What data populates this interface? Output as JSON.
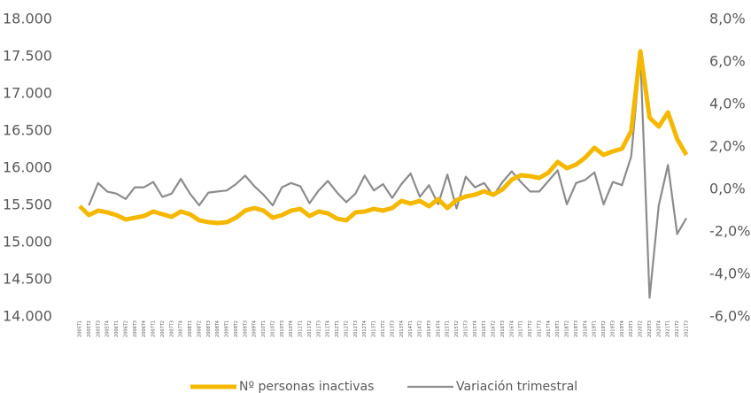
{
  "chart_data": {
    "type": "line",
    "categories": [
      "2005T1",
      "2005T2",
      "2005T3",
      "2005T4",
      "2006T1",
      "2006T2",
      "2006T3",
      "2006T4",
      "2007T1",
      "2007T2",
      "2007T3",
      "2007T4",
      "2008T1",
      "2008T2",
      "2008T3",
      "2008T4",
      "2009T1",
      "2009T2",
      "2009T3",
      "2009T4",
      "2010T1",
      "2010T2",
      "2010T3",
      "2010T4",
      "2011T1",
      "2011T2",
      "2011T3",
      "2011T4",
      "2012T1",
      "2012T2",
      "2012T3",
      "2012T4",
      "2013T1",
      "2013T2",
      "2013T3",
      "2013T4",
      "2014T1",
      "2014T2",
      "2014T3",
      "2014T4",
      "2015T1",
      "2015T2",
      "2015T3",
      "2015T4",
      "2016T1",
      "2016T2",
      "2016T3",
      "2016T4",
      "2017T1",
      "2017T2",
      "2017T3",
      "2017T4",
      "2018T1",
      "2018T2",
      "2018T3",
      "2018T4",
      "2019T1",
      "2019T2",
      "2019T3",
      "2019T4",
      "2020T1",
      "2020T2",
      "2020T3",
      "2020T4",
      "2021T1",
      "2021T2",
      "2021T3"
    ],
    "series": [
      {
        "name": "Nº personas inactivas",
        "color": "#f5b800",
        "values": [
          15488,
          15369,
          15429,
          15405,
          15369,
          15310,
          15333,
          15357,
          15417,
          15381,
          15345,
          15417,
          15381,
          15298,
          15274,
          15262,
          15274,
          15333,
          15429,
          15464,
          15429,
          15333,
          15369,
          15429,
          15452,
          15357,
          15417,
          15393,
          15321,
          15298,
          15405,
          15417,
          15452,
          15429,
          15464,
          15560,
          15524,
          15560,
          15488,
          15583,
          15464,
          15571,
          15619,
          15643,
          15690,
          15643,
          15714,
          15845,
          15905,
          15893,
          15869,
          15940,
          16083,
          16000,
          16048,
          16143,
          16274,
          16179,
          16226,
          16262,
          16500,
          17571,
          16679,
          16560,
          16750,
          16393,
          16179
        ]
      },
      {
        "name": "Variación trimestral",
        "color": "#8c8c8c",
        "axis": "y2",
        "values": [
          null,
          -0.75,
          0.3,
          -0.1,
          -0.2,
          -0.45,
          0.1,
          0.1,
          0.35,
          -0.35,
          -0.2,
          0.5,
          -0.2,
          -0.75,
          -0.15,
          -0.1,
          -0.05,
          0.25,
          0.65,
          0.15,
          -0.25,
          -0.75,
          0.1,
          0.3,
          0.15,
          -0.65,
          -0.05,
          0.4,
          -0.15,
          -0.6,
          -0.2,
          0.65,
          -0.05,
          0.25,
          -0.4,
          0.25,
          0.75,
          -0.35,
          0.2,
          -0.7,
          0.7,
          -0.9,
          0.6,
          0.1,
          0.3,
          -0.3,
          0.35,
          0.85,
          0.35,
          -0.1,
          -0.1,
          0.4,
          0.9,
          -0.7,
          0.3,
          0.45,
          0.8,
          -0.7,
          0.35,
          0.2,
          1.55,
          6.3,
          -5.1,
          -0.75,
          1.15,
          -2.1,
          -1.35
        ]
      }
    ],
    "ylim": [
      14000,
      18000
    ],
    "yticks": [
      {
        "value": 14000,
        "label": "14.000"
      },
      {
        "value": 14500,
        "label": "14.500"
      },
      {
        "value": 15000,
        "label": "15.000"
      },
      {
        "value": 15500,
        "label": "15.500"
      },
      {
        "value": 16000,
        "label": "16.000"
      },
      {
        "value": 16500,
        "label": "16.500"
      },
      {
        "value": 17000,
        "label": "17.000"
      },
      {
        "value": 17500,
        "label": "17.500"
      },
      {
        "value": 18000,
        "label": "18.000"
      }
    ],
    "y2lim": [
      -6,
      8
    ],
    "y2ticks": [
      {
        "value": -6,
        "label": "-6,0%"
      },
      {
        "value": -4,
        "label": "-4,0%"
      },
      {
        "value": -2,
        "label": "-2,0%"
      },
      {
        "value": 0,
        "label": "0,0%"
      },
      {
        "value": 2,
        "label": "2,0%"
      },
      {
        "value": 4,
        "label": "4,0%"
      },
      {
        "value": 6,
        "label": "6,0%"
      },
      {
        "value": 8,
        "label": "8,0%"
      }
    ],
    "legend": "bottom"
  }
}
